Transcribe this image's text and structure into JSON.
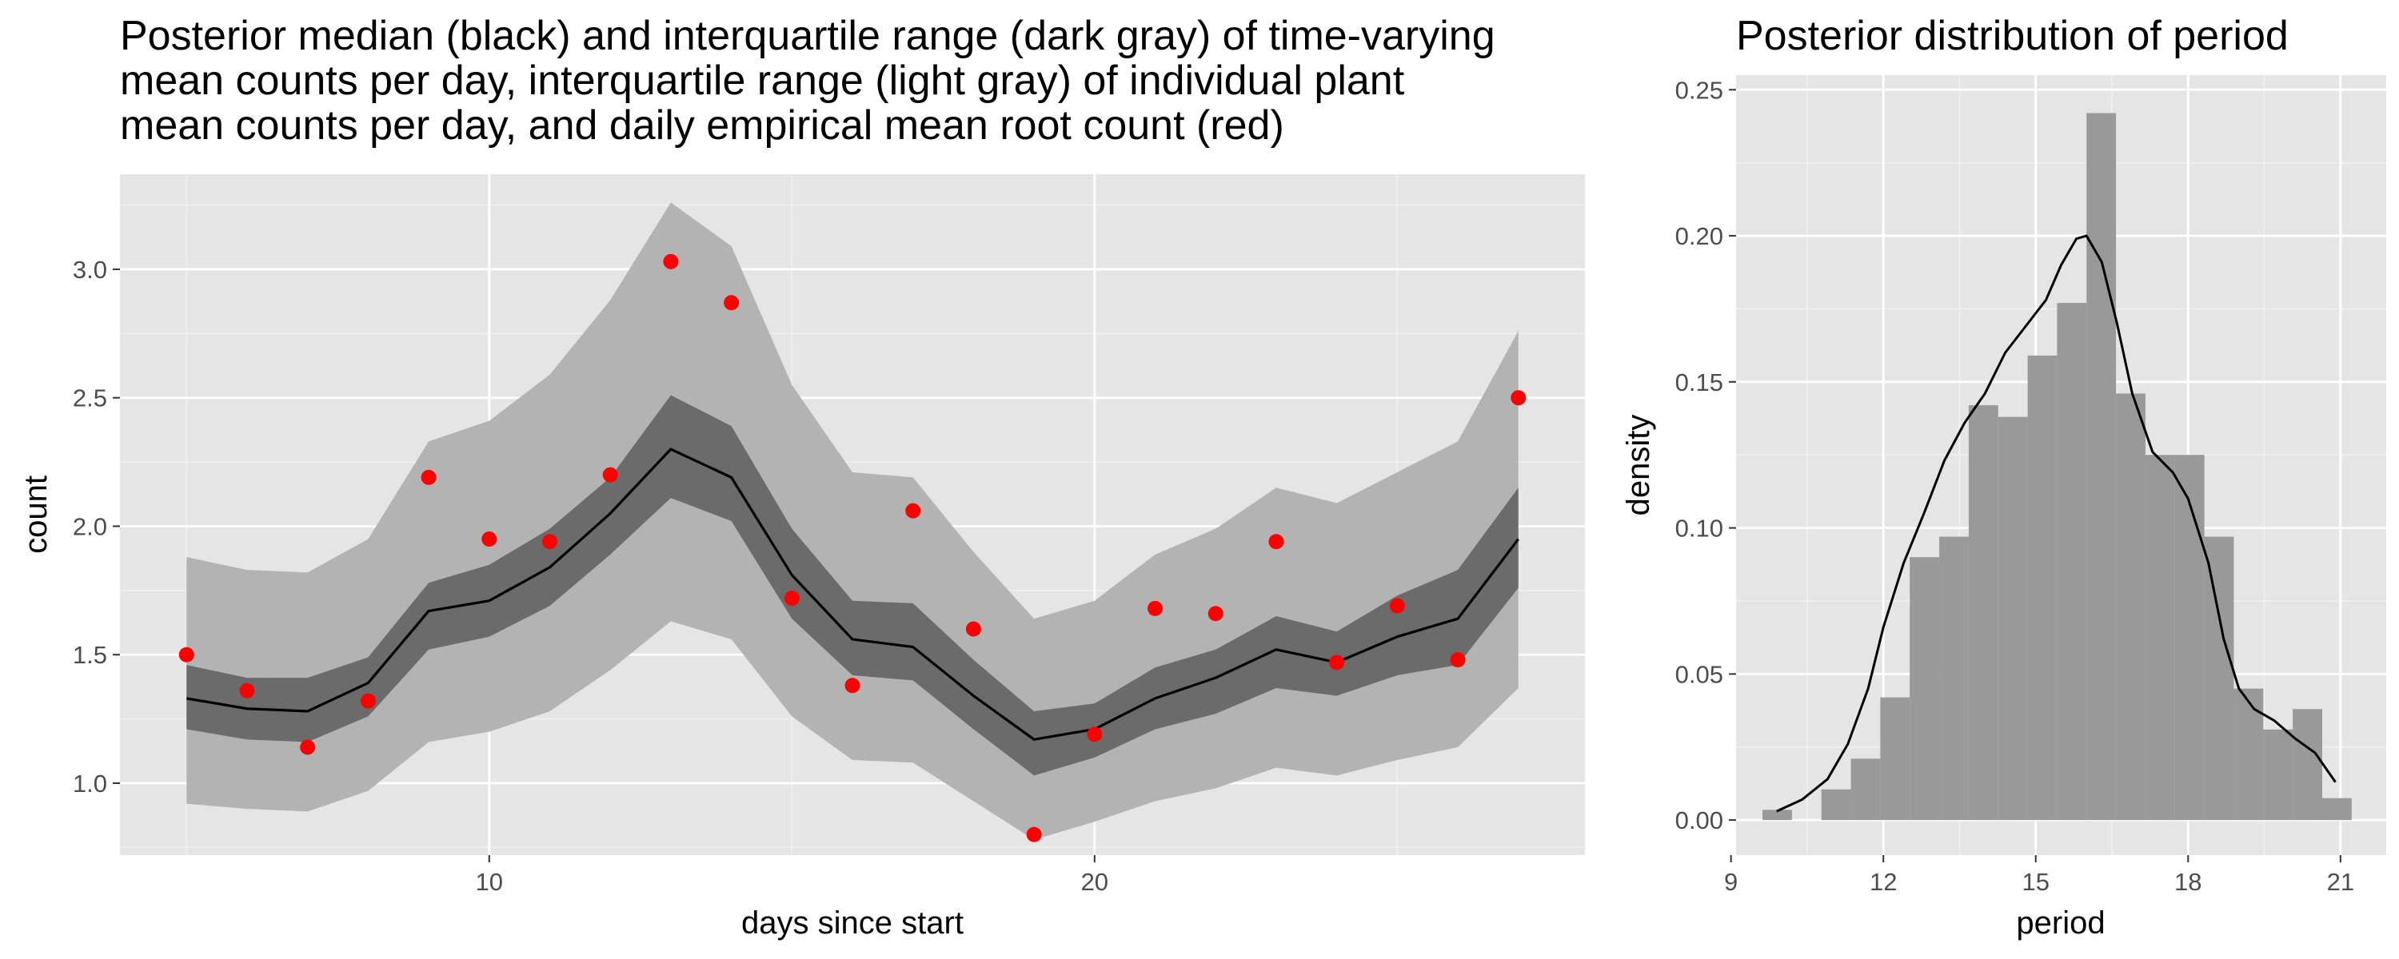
{
  "chart_data": [
    {
      "type": "line",
      "title_lines": [
        "Posterior median (black) and interquartile range (dark gray) of time-varying",
        "mean counts per day, interquartile range (light gray) of individual plant",
        "mean counts per day, and daily empirical mean root count (red)"
      ],
      "xlabel": "days since start",
      "ylabel": "count",
      "xlim": [
        3.9,
        28.1
      ],
      "ylim": [
        0.72,
        3.37
      ],
      "x_ticks": [
        10,
        20
      ],
      "y_ticks": [
        1.0,
        1.5,
        2.0,
        2.5,
        3.0
      ],
      "y_tick_labels": [
        "1.0",
        "1.5",
        "2.0",
        "2.5",
        "3.0"
      ],
      "grid": true,
      "background": "#e5e5e5",
      "x": [
        5,
        6,
        7,
        8,
        9,
        10,
        11,
        12,
        13,
        14,
        15,
        16,
        17,
        18,
        19,
        20,
        21,
        22,
        23,
        24,
        25,
        26,
        27
      ],
      "series": [
        {
          "role": "light_band",
          "color": "#b3b3b3",
          "lower": [
            0.92,
            0.9,
            0.89,
            0.97,
            1.16,
            1.2,
            1.28,
            1.44,
            1.63,
            1.56,
            1.26,
            1.09,
            1.08,
            0.93,
            0.78,
            0.85,
            0.93,
            0.98,
            1.06,
            1.03,
            1.09,
            1.14,
            1.37
          ],
          "upper": [
            1.88,
            1.83,
            1.82,
            1.95,
            2.33,
            2.41,
            2.59,
            2.88,
            3.26,
            3.09,
            2.55,
            2.21,
            2.19,
            1.9,
            1.64,
            1.71,
            1.89,
            1.99,
            2.15,
            2.09,
            2.21,
            2.33,
            2.76
          ]
        },
        {
          "role": "dark_band",
          "color": "#6b6b6b",
          "lower": [
            1.21,
            1.17,
            1.16,
            1.26,
            1.52,
            1.57,
            1.69,
            1.89,
            2.11,
            2.02,
            1.64,
            1.42,
            1.4,
            1.21,
            1.03,
            1.1,
            1.21,
            1.27,
            1.37,
            1.34,
            1.42,
            1.46,
            1.76
          ],
          "upper": [
            1.46,
            1.41,
            1.41,
            1.49,
            1.78,
            1.85,
            1.99,
            2.19,
            2.51,
            2.39,
            1.99,
            1.71,
            1.7,
            1.48,
            1.28,
            1.31,
            1.45,
            1.52,
            1.65,
            1.59,
            1.73,
            1.83,
            2.15
          ]
        },
        {
          "role": "median",
          "color": "#000000",
          "values": [
            1.33,
            1.29,
            1.28,
            1.39,
            1.67,
            1.71,
            1.84,
            2.05,
            2.3,
            2.19,
            1.81,
            1.56,
            1.53,
            1.34,
            1.17,
            1.21,
            1.33,
            1.41,
            1.52,
            1.47,
            1.57,
            1.64,
            1.95
          ]
        },
        {
          "role": "points",
          "color": "#ff0000",
          "values": [
            1.5,
            1.36,
            1.14,
            1.32,
            2.19,
            1.95,
            1.94,
            2.2,
            3.03,
            2.87,
            1.72,
            1.38,
            2.06,
            1.6,
            0.8,
            1.19,
            1.68,
            1.66,
            1.94,
            1.47,
            1.69,
            1.48,
            2.5
          ]
        }
      ]
    },
    {
      "type": "histogram",
      "title": "Posterior distribution of period",
      "xlabel": "period",
      "ylabel": "density",
      "xlim": [
        9.1,
        21.9
      ],
      "ylim": [
        -0.012,
        0.255
      ],
      "x_ticks": [
        9,
        12,
        15,
        18,
        21
      ],
      "y_ticks": [
        0.0,
        0.05,
        0.1,
        0.15,
        0.2,
        0.25
      ],
      "y_tick_labels": [
        "0.00",
        "0.05",
        "0.10",
        "0.15",
        "0.20",
        "0.25"
      ],
      "grid": true,
      "background": "#e5e5e5",
      "bin_width": 0.58,
      "bin_start": 9.62,
      "bin_densities": [
        0.0035,
        0.0,
        0.0105,
        0.021,
        0.042,
        0.09,
        0.097,
        0.142,
        0.138,
        0.159,
        0.177,
        0.242,
        0.146,
        0.125,
        0.125,
        0.097,
        0.045,
        0.031,
        0.038,
        0.0075
      ],
      "bar_color": "#999999",
      "density_curve": {
        "color": "#000000",
        "x": [
          9.9,
          10.4,
          10.9,
          11.3,
          11.7,
          12.0,
          12.4,
          12.8,
          13.2,
          13.6,
          14.0,
          14.4,
          14.8,
          15.2,
          15.5,
          15.8,
          16.0,
          16.3,
          16.6,
          16.9,
          17.3,
          17.7,
          18.0,
          18.4,
          18.7,
          19.0,
          19.3,
          19.7,
          20.1,
          20.5,
          20.9
        ],
        "y": [
          0.003,
          0.007,
          0.014,
          0.026,
          0.045,
          0.066,
          0.088,
          0.105,
          0.123,
          0.136,
          0.146,
          0.16,
          0.169,
          0.178,
          0.19,
          0.199,
          0.2,
          0.191,
          0.17,
          0.146,
          0.126,
          0.119,
          0.11,
          0.088,
          0.062,
          0.045,
          0.038,
          0.034,
          0.028,
          0.023,
          0.013
        ]
      }
    }
  ]
}
